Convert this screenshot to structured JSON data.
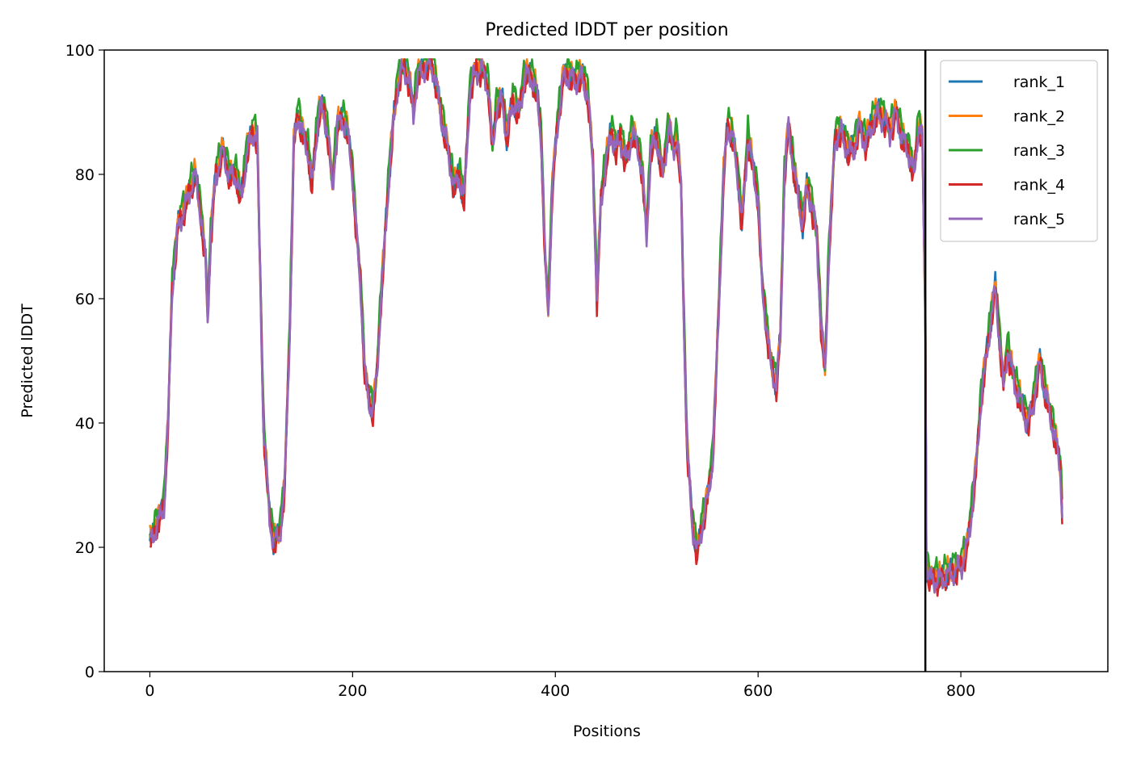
{
  "chart_data": {
    "type": "line",
    "title": "Predicted lDDT per position",
    "xlabel": "Positions",
    "ylabel": "Predicted lDDT",
    "xlim": [
      -45,
      945
    ],
    "ylim": [
      0,
      100
    ],
    "xticks": [
      0,
      200,
      400,
      600,
      800
    ],
    "yticks": [
      0,
      20,
      40,
      60,
      80,
      100
    ],
    "grid": false,
    "legend_position": "top-right",
    "chain_break": 765,
    "x_max": 900,
    "series": [
      {
        "name": "rank_1",
        "color": "#1f77b4",
        "offset": 0.0,
        "values": []
      },
      {
        "name": "rank_2",
        "color": "#ff7f0e",
        "offset": 0.6,
        "values": []
      },
      {
        "name": "rank_3",
        "color": "#2ca02c",
        "offset": 1.2,
        "values": []
      },
      {
        "name": "rank_4",
        "color": "#d62728",
        "offset": -0.6,
        "values": []
      },
      {
        "name": "rank_5",
        "color": "#9467bd",
        "offset": -0.3,
        "values": []
      }
    ],
    "anchor_points": [
      [
        0,
        21
      ],
      [
        8,
        24
      ],
      [
        14,
        27
      ],
      [
        18,
        40
      ],
      [
        22,
        62
      ],
      [
        28,
        72
      ],
      [
        35,
        75
      ],
      [
        40,
        78
      ],
      [
        45,
        80
      ],
      [
        50,
        74
      ],
      [
        55,
        66
      ],
      [
        57,
        57
      ],
      [
        60,
        70
      ],
      [
        65,
        80
      ],
      [
        72,
        84
      ],
      [
        78,
        80
      ],
      [
        85,
        80
      ],
      [
        90,
        76
      ],
      [
        96,
        84
      ],
      [
        102,
        87
      ],
      [
        106,
        86
      ],
      [
        108,
        70
      ],
      [
        112,
        40
      ],
      [
        118,
        25
      ],
      [
        122,
        21
      ],
      [
        128,
        22
      ],
      [
        133,
        30
      ],
      [
        138,
        55
      ],
      [
        142,
        85
      ],
      [
        146,
        90
      ],
      [
        150,
        87
      ],
      [
        156,
        84
      ],
      [
        160,
        78
      ],
      [
        164,
        86
      ],
      [
        168,
        91
      ],
      [
        172,
        90
      ],
      [
        176,
        86
      ],
      [
        180,
        78
      ],
      [
        185,
        88
      ],
      [
        190,
        89
      ],
      [
        195,
        87
      ],
      [
        200,
        80
      ],
      [
        204,
        70
      ],
      [
        208,
        62
      ],
      [
        212,
        48
      ],
      [
        216,
        44
      ],
      [
        220,
        42
      ],
      [
        224,
        48
      ],
      [
        228,
        60
      ],
      [
        232,
        70
      ],
      [
        236,
        80
      ],
      [
        240,
        88
      ],
      [
        244,
        94
      ],
      [
        248,
        97
      ],
      [
        252,
        97
      ],
      [
        256,
        95
      ],
      [
        260,
        90
      ],
      [
        264,
        96
      ],
      [
        270,
        97
      ],
      [
        276,
        98
      ],
      [
        280,
        97
      ],
      [
        284,
        93
      ],
      [
        288,
        89
      ],
      [
        292,
        86
      ],
      [
        296,
        82
      ],
      [
        300,
        78
      ],
      [
        305,
        80
      ],
      [
        310,
        76
      ],
      [
        316,
        94
      ],
      [
        322,
        97
      ],
      [
        328,
        97
      ],
      [
        334,
        94
      ],
      [
        338,
        84
      ],
      [
        342,
        91
      ],
      [
        348,
        92
      ],
      [
        352,
        86
      ],
      [
        358,
        92
      ],
      [
        364,
        90
      ],
      [
        370,
        96
      ],
      [
        376,
        96
      ],
      [
        382,
        93
      ],
      [
        386,
        86
      ],
      [
        390,
        66
      ],
      [
        393,
        58
      ],
      [
        397,
        78
      ],
      [
        402,
        88
      ],
      [
        408,
        96
      ],
      [
        414,
        96
      ],
      [
        420,
        95
      ],
      [
        426,
        96
      ],
      [
        432,
        93
      ],
      [
        437,
        82
      ],
      [
        441,
        60
      ],
      [
        445,
        76
      ],
      [
        450,
        82
      ],
      [
        455,
        87
      ],
      [
        460,
        84
      ],
      [
        464,
        86
      ],
      [
        470,
        82
      ],
      [
        476,
        87
      ],
      [
        482,
        84
      ],
      [
        486,
        80
      ],
      [
        490,
        70
      ],
      [
        494,
        84
      ],
      [
        500,
        86
      ],
      [
        506,
        80
      ],
      [
        512,
        88
      ],
      [
        516,
        84
      ],
      [
        520,
        86
      ],
      [
        524,
        78
      ],
      [
        527,
        55
      ],
      [
        530,
        36
      ],
      [
        535,
        24
      ],
      [
        540,
        19
      ],
      [
        545,
        24
      ],
      [
        550,
        28
      ],
      [
        555,
        34
      ],
      [
        558,
        45
      ],
      [
        562,
        62
      ],
      [
        566,
        80
      ],
      [
        570,
        88
      ],
      [
        575,
        86
      ],
      [
        580,
        80
      ],
      [
        584,
        72
      ],
      [
        590,
        86
      ],
      [
        596,
        80
      ],
      [
        600,
        76
      ],
      [
        604,
        62
      ],
      [
        608,
        56
      ],
      [
        612,
        50
      ],
      [
        618,
        46
      ],
      [
        622,
        54
      ],
      [
        626,
        80
      ],
      [
        630,
        88
      ],
      [
        636,
        80
      ],
      [
        640,
        76
      ],
      [
        644,
        72
      ],
      [
        648,
        78
      ],
      [
        652,
        76
      ],
      [
        658,
        70
      ],
      [
        662,
        56
      ],
      [
        666,
        48
      ],
      [
        670,
        68
      ],
      [
        676,
        86
      ],
      [
        682,
        87
      ],
      [
        688,
        84
      ],
      [
        694,
        84
      ],
      [
        700,
        88
      ],
      [
        706,
        85
      ],
      [
        712,
        88
      ],
      [
        718,
        90
      ],
      [
        724,
        89
      ],
      [
        730,
        87
      ],
      [
        736,
        90
      ],
      [
        742,
        86
      ],
      [
        748,
        84
      ],
      [
        754,
        80
      ],
      [
        758,
        88
      ],
      [
        762,
        86
      ],
      [
        765,
        56
      ],
      [
        766,
        17
      ],
      [
        770,
        15
      ],
      [
        780,
        15
      ],
      [
        790,
        16
      ],
      [
        800,
        17
      ],
      [
        806,
        20
      ],
      [
        810,
        25
      ],
      [
        815,
        33
      ],
      [
        820,
        44
      ],
      [
        826,
        52
      ],
      [
        830,
        57
      ],
      [
        834,
        62
      ],
      [
        838,
        54
      ],
      [
        842,
        46
      ],
      [
        846,
        52
      ],
      [
        850,
        49
      ],
      [
        854,
        46
      ],
      [
        858,
        44
      ],
      [
        862,
        42
      ],
      [
        866,
        40
      ],
      [
        870,
        42
      ],
      [
        874,
        46
      ],
      [
        878,
        50
      ],
      [
        882,
        46
      ],
      [
        886,
        43
      ],
      [
        890,
        40
      ],
      [
        894,
        37
      ],
      [
        898,
        33
      ],
      [
        900,
        26
      ]
    ]
  }
}
